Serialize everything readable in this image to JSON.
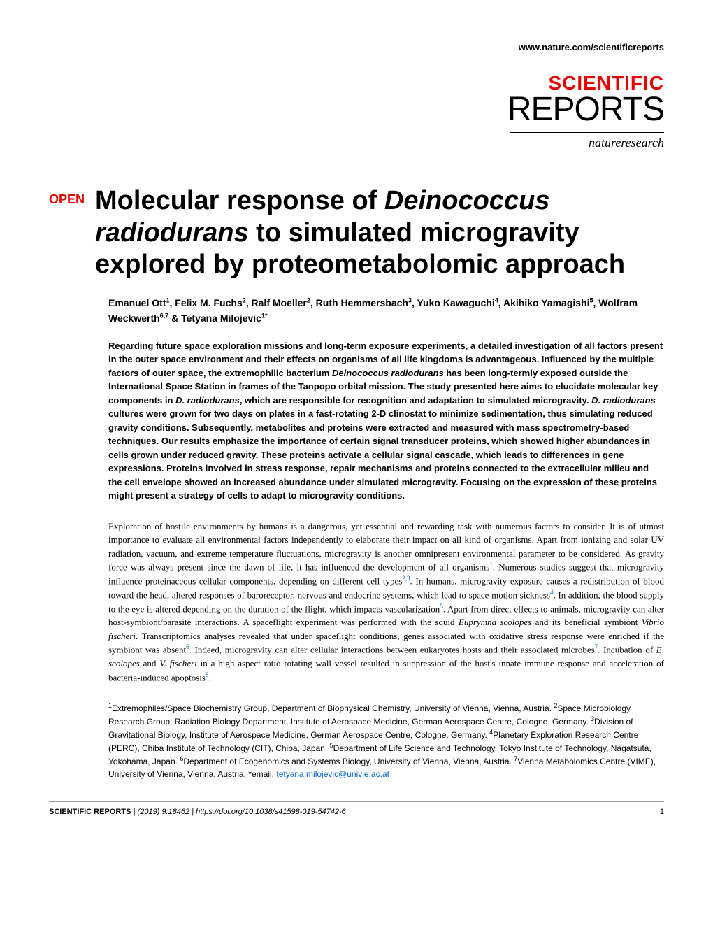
{
  "header": {
    "url": "www.nature.com/scientificreports"
  },
  "logo": {
    "scientific": "SCIENTIFIC",
    "reports": "REPORTS",
    "nature": "natureresearch"
  },
  "open_label": "OPEN",
  "title_html": "Molecular response of <em>Deinococcus radiodurans</em> to simulated microgravity explored by proteometabolomic approach",
  "authors_html": "Emanuel Ott<sup>1</sup>, Felix M. Fuchs<sup>2</sup>, Ralf Moeller<sup>2</sup>, Ruth Hemmersbach<sup>3</sup>, Yuko Kawaguchi<sup>4</sup>, Akihiko Yamagishi<sup>5</sup>, Wolfram Weckwerth<sup>6,7</sup> & Tetyana Milojevic<sup>1*</sup>",
  "abstract_html": "Regarding future space exploration missions and long-term exposure experiments, a detailed investigation of all factors present in the outer space environment and their effects on organisms of all life kingdoms is advantageous. Influenced by the multiple factors of outer space, the extremophilic bacterium <em>Deinococcus radiodurans</em> has been long-termly exposed outside the International Space Station in frames of the Tanpopo orbital mission. The study presented here aims to elucidate molecular key components in <em>D. radiodurans</em>, which are responsible for recognition and adaptation to simulated microgravity. <em>D. radiodurans</em> cultures were grown for two days on plates in a fast-rotating 2-D clinostat to minimize sedimentation, thus simulating reduced gravity conditions. Subsequently, metabolites and proteins were extracted and measured with mass spectrometry-based techniques. Our results emphasize the importance of certain signal transducer proteins, which showed higher abundances in cells grown under reduced gravity. These proteins activate a cellular signal cascade, which leads to differences in gene expressions. Proteins involved in stress response, repair mechanisms and proteins connected to the extracellular milieu and the cell envelope showed an increased abundance under simulated microgravity. Focusing on the expression of these proteins might present a strategy of cells to adapt to microgravity conditions.",
  "body_html": "Exploration of hostile environments by humans is a dangerous, yet essential and rewarding task with numerous factors to consider. It is of utmost importance to evaluate all environmental factors independently to elaborate their impact on all kind of organisms. Apart from ionizing and solar UV radiation, vacuum, and extreme temperature fluctuations, microgravity is another omnipresent environmental parameter to be considered. As gravity force was always present since the dawn of life, it has influenced the development of all organisms<sup>1</sup>. Numerous studies suggest that microgravity influence proteinaceous cellular components, depending on different cell types<sup>2,3</sup>. In humans, microgravity exposure causes a redistribution of blood toward the head, altered responses of baroreceptor, nervous and endocrine systems, which lead to space motion sickness<sup>4</sup>. In addition, the blood supply to the eye is altered depending on the duration of the flight, which impacts vascularization<sup>5</sup>. Apart from direct effects to animals, microgravity can alter host-symbiont/parasite interactions. A spaceflight experiment was performed with the squid <em>Euprymna scolopes</em> and its beneficial symbiont <em>Vibrio fischeri</em>. Transcriptomics analyses revealed that under spaceflight conditions, genes associated with oxidative stress response were enriched if the symbiont was absent<sup>6</sup>. Indeed, microgravity can alter cellular interactions between eukaryotes hosts and their associated microbes<sup>7</sup>. Incubation of <em>E. scolopes</em> and <em>V. fischeri</em> in a high aspect ratio rotating wall vessel resulted in suppression of the host's innate immune response and acceleration of bacteria-induced apoptosis<sup>8</sup>.",
  "affiliations_html": "<sup>1</sup>Extremophiles/Space Biochemistry Group, Department of Biophysical Chemistry, University of Vienna, Vienna, Austria. <sup>2</sup>Space Microbiology Research Group, Radiation Biology Department, Institute of Aerospace Medicine, German Aerospace Centre, Cologne, Germany. <sup>3</sup>Division of Gravitational Biology, Institute of Aerospace Medicine, German Aerospace Centre, Cologne, Germany. <sup>4</sup>Planetary Exploration Research Centre (PERC), Chiba Institute of Technology (CIT), Chiba, Japan. <sup>5</sup>Department of Life Science and Technology, Tokyo Institute of Technology, Nagatsuta, Yokohama, Japan. <sup>6</sup>Department of Ecogenomics and Systems Biology, University of Vienna, Vienna, Austria. <sup>7</sup>Vienna Metabolomics Centre (VIME), University of Vienna, Vienna, Austria. *email: <span class=\"email-link\">tetyana.milojevic@univie.ac.at</span>",
  "footer": {
    "journal": "SCIENTIFIC REPORTS |",
    "citation": "(2019) 9:18462 | https://doi.org/10.1038/s41598-019-54742-6",
    "page": "1"
  },
  "colors": {
    "accent": "#e60000",
    "link": "#0066cc",
    "text": "#000000",
    "bg": "#ffffff"
  },
  "typography": {
    "title_fontsize": 38,
    "body_fontsize": 13,
    "abstract_fontsize": 13,
    "authors_fontsize": 14
  }
}
